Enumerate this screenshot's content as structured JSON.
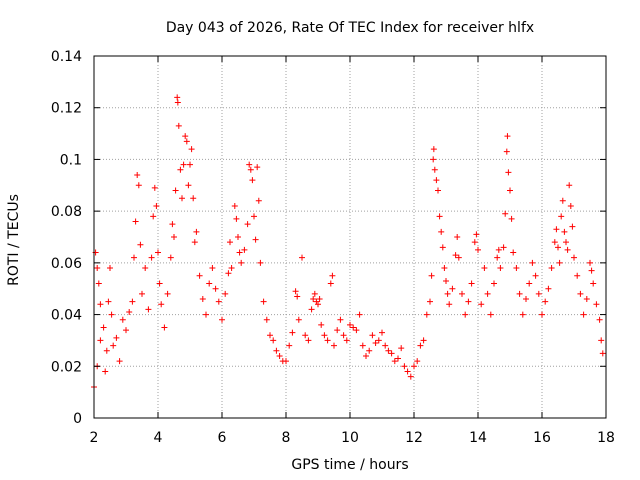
{
  "chart_data": {
    "type": "scatter",
    "title": "Day 043 of 2026, Rate Of TEC Index for receiver hlfx",
    "xlabel": "GPS time / hours",
    "ylabel": "ROTI / TECUs",
    "xlim": [
      2,
      18
    ],
    "ylim": [
      0,
      0.14
    ],
    "xticks": [
      2,
      4,
      6,
      8,
      10,
      12,
      14,
      16,
      18
    ],
    "xtick_labels": [
      "2",
      "4",
      "6",
      "8",
      "10",
      "12",
      "14",
      "16",
      "18"
    ],
    "yticks": [
      0,
      0.02,
      0.04,
      0.06,
      0.08,
      0.1,
      0.12,
      0.14
    ],
    "ytick_labels": [
      "0",
      "0.02",
      "0.04",
      "0.06",
      "0.08",
      "0.1",
      "0.12",
      "0.14"
    ],
    "grid": true,
    "marker": "+",
    "color": "#ff0000",
    "series": [
      {
        "name": "ROTI",
        "points": [
          [
            2.0,
            0.012
          ],
          [
            2.05,
            0.064
          ],
          [
            2.1,
            0.058
          ],
          [
            2.1,
            0.02
          ],
          [
            2.15,
            0.052
          ],
          [
            2.2,
            0.044
          ],
          [
            2.2,
            0.03
          ],
          [
            2.3,
            0.035
          ],
          [
            2.35,
            0.018
          ],
          [
            2.4,
            0.026
          ],
          [
            2.45,
            0.045
          ],
          [
            2.5,
            0.058
          ],
          [
            2.55,
            0.04
          ],
          [
            2.6,
            0.028
          ],
          [
            2.7,
            0.031
          ],
          [
            2.8,
            0.022
          ],
          [
            2.9,
            0.038
          ],
          [
            3.0,
            0.034
          ],
          [
            3.1,
            0.041
          ],
          [
            3.2,
            0.045
          ],
          [
            3.25,
            0.062
          ],
          [
            3.3,
            0.076
          ],
          [
            3.35,
            0.094
          ],
          [
            3.4,
            0.09
          ],
          [
            3.45,
            0.067
          ],
          [
            3.5,
            0.048
          ],
          [
            3.6,
            0.058
          ],
          [
            3.7,
            0.042
          ],
          [
            3.8,
            0.062
          ],
          [
            3.85,
            0.078
          ],
          [
            3.9,
            0.089
          ],
          [
            3.95,
            0.082
          ],
          [
            4.0,
            0.064
          ],
          [
            4.05,
            0.052
          ],
          [
            4.1,
            0.044
          ],
          [
            4.2,
            0.035
          ],
          [
            4.3,
            0.048
          ],
          [
            4.4,
            0.062
          ],
          [
            4.45,
            0.075
          ],
          [
            4.5,
            0.07
          ],
          [
            4.55,
            0.088
          ],
          [
            4.6,
            0.124
          ],
          [
            4.62,
            0.122
          ],
          [
            4.65,
            0.113
          ],
          [
            4.7,
            0.096
          ],
          [
            4.75,
            0.085
          ],
          [
            4.8,
            0.098
          ],
          [
            4.85,
            0.109
          ],
          [
            4.9,
            0.107
          ],
          [
            4.95,
            0.09
          ],
          [
            5.0,
            0.098
          ],
          [
            5.05,
            0.104
          ],
          [
            5.1,
            0.085
          ],
          [
            5.15,
            0.068
          ],
          [
            5.2,
            0.072
          ],
          [
            5.3,
            0.055
          ],
          [
            5.4,
            0.046
          ],
          [
            5.5,
            0.04
          ],
          [
            5.6,
            0.052
          ],
          [
            5.7,
            0.058
          ],
          [
            5.8,
            0.05
          ],
          [
            5.9,
            0.045
          ],
          [
            6.0,
            0.038
          ],
          [
            6.1,
            0.048
          ],
          [
            6.2,
            0.056
          ],
          [
            6.25,
            0.068
          ],
          [
            6.3,
            0.058
          ],
          [
            6.4,
            0.082
          ],
          [
            6.45,
            0.077
          ],
          [
            6.5,
            0.07
          ],
          [
            6.55,
            0.064
          ],
          [
            6.6,
            0.06
          ],
          [
            6.7,
            0.065
          ],
          [
            6.8,
            0.075
          ],
          [
            6.85,
            0.098
          ],
          [
            6.9,
            0.096
          ],
          [
            6.95,
            0.092
          ],
          [
            7.0,
            0.078
          ],
          [
            7.05,
            0.069
          ],
          [
            7.1,
            0.097
          ],
          [
            7.15,
            0.084
          ],
          [
            7.2,
            0.06
          ],
          [
            7.3,
            0.045
          ],
          [
            7.4,
            0.038
          ],
          [
            7.5,
            0.032
          ],
          [
            7.6,
            0.03
          ],
          [
            7.7,
            0.026
          ],
          [
            7.8,
            0.024
          ],
          [
            7.9,
            0.022
          ],
          [
            8.0,
            0.022
          ],
          [
            8.1,
            0.028
          ],
          [
            8.2,
            0.033
          ],
          [
            8.3,
            0.049
          ],
          [
            8.35,
            0.047
          ],
          [
            8.4,
            0.038
          ],
          [
            8.5,
            0.062
          ],
          [
            8.6,
            0.032
          ],
          [
            8.7,
            0.03
          ],
          [
            8.8,
            0.042
          ],
          [
            8.85,
            0.046
          ],
          [
            8.9,
            0.048
          ],
          [
            8.95,
            0.045
          ],
          [
            9.0,
            0.044
          ],
          [
            9.05,
            0.046
          ],
          [
            9.1,
            0.036
          ],
          [
            9.2,
            0.032
          ],
          [
            9.3,
            0.03
          ],
          [
            9.4,
            0.052
          ],
          [
            9.45,
            0.055
          ],
          [
            9.5,
            0.028
          ],
          [
            9.6,
            0.034
          ],
          [
            9.7,
            0.038
          ],
          [
            9.8,
            0.032
          ],
          [
            9.9,
            0.03
          ],
          [
            10.0,
            0.036
          ],
          [
            10.1,
            0.035
          ],
          [
            10.2,
            0.034
          ],
          [
            10.3,
            0.04
          ],
          [
            10.4,
            0.028
          ],
          [
            10.5,
            0.024
          ],
          [
            10.6,
            0.026
          ],
          [
            10.7,
            0.032
          ],
          [
            10.8,
            0.029
          ],
          [
            10.9,
            0.03
          ],
          [
            11.0,
            0.033
          ],
          [
            11.1,
            0.028
          ],
          [
            11.2,
            0.026
          ],
          [
            11.3,
            0.025
          ],
          [
            11.4,
            0.022
          ],
          [
            11.5,
            0.023
          ],
          [
            11.6,
            0.027
          ],
          [
            11.7,
            0.02
          ],
          [
            11.8,
            0.018
          ],
          [
            11.9,
            0.016
          ],
          [
            12.0,
            0.02
          ],
          [
            12.1,
            0.022
          ],
          [
            12.2,
            0.028
          ],
          [
            12.3,
            0.03
          ],
          [
            12.4,
            0.04
          ],
          [
            12.5,
            0.045
          ],
          [
            12.55,
            0.055
          ],
          [
            12.6,
            0.1
          ],
          [
            12.62,
            0.104
          ],
          [
            12.65,
            0.096
          ],
          [
            12.7,
            0.092
          ],
          [
            12.75,
            0.088
          ],
          [
            12.8,
            0.078
          ],
          [
            12.85,
            0.072
          ],
          [
            12.9,
            0.066
          ],
          [
            12.95,
            0.058
          ],
          [
            13.0,
            0.053
          ],
          [
            13.05,
            0.048
          ],
          [
            13.1,
            0.044
          ],
          [
            13.2,
            0.05
          ],
          [
            13.3,
            0.063
          ],
          [
            13.35,
            0.07
          ],
          [
            13.4,
            0.062
          ],
          [
            13.5,
            0.048
          ],
          [
            13.6,
            0.04
          ],
          [
            13.7,
            0.045
          ],
          [
            13.8,
            0.052
          ],
          [
            13.9,
            0.068
          ],
          [
            13.95,
            0.071
          ],
          [
            14.0,
            0.065
          ],
          [
            14.1,
            0.044
          ],
          [
            14.2,
            0.058
          ],
          [
            14.3,
            0.048
          ],
          [
            14.4,
            0.04
          ],
          [
            14.5,
            0.052
          ],
          [
            14.6,
            0.062
          ],
          [
            14.65,
            0.065
          ],
          [
            14.7,
            0.058
          ],
          [
            14.8,
            0.066
          ],
          [
            14.85,
            0.079
          ],
          [
            14.9,
            0.103
          ],
          [
            14.92,
            0.109
          ],
          [
            14.95,
            0.095
          ],
          [
            15.0,
            0.088
          ],
          [
            15.05,
            0.077
          ],
          [
            15.1,
            0.064
          ],
          [
            15.2,
            0.058
          ],
          [
            15.3,
            0.048
          ],
          [
            15.4,
            0.04
          ],
          [
            15.5,
            0.046
          ],
          [
            15.6,
            0.052
          ],
          [
            15.7,
            0.06
          ],
          [
            15.8,
            0.055
          ],
          [
            15.9,
            0.048
          ],
          [
            16.0,
            0.04
          ],
          [
            16.1,
            0.045
          ],
          [
            16.2,
            0.05
          ],
          [
            16.3,
            0.058
          ],
          [
            16.4,
            0.068
          ],
          [
            16.45,
            0.073
          ],
          [
            16.5,
            0.066
          ],
          [
            16.55,
            0.06
          ],
          [
            16.6,
            0.078
          ],
          [
            16.65,
            0.084
          ],
          [
            16.7,
            0.072
          ],
          [
            16.75,
            0.068
          ],
          [
            16.8,
            0.065
          ],
          [
            16.85,
            0.09
          ],
          [
            16.9,
            0.082
          ],
          [
            16.95,
            0.074
          ],
          [
            17.0,
            0.062
          ],
          [
            17.1,
            0.055
          ],
          [
            17.2,
            0.048
          ],
          [
            17.3,
            0.04
          ],
          [
            17.4,
            0.046
          ],
          [
            17.5,
            0.06
          ],
          [
            17.55,
            0.057
          ],
          [
            17.6,
            0.052
          ],
          [
            17.7,
            0.044
          ],
          [
            17.8,
            0.038
          ],
          [
            17.85,
            0.03
          ],
          [
            17.9,
            0.025
          ]
        ]
      }
    ]
  }
}
